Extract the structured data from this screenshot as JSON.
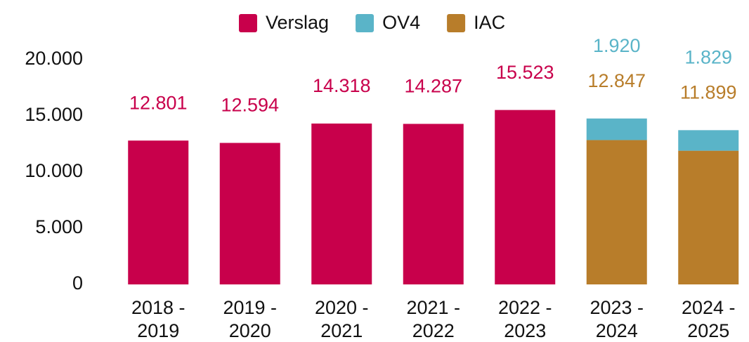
{
  "chart_data": {
    "type": "stacked-bar",
    "categories": [
      [
        "2018 -",
        "2019"
      ],
      [
        "2019 -",
        "2020"
      ],
      [
        "2020 -",
        "2021"
      ],
      [
        "2021 -",
        "2022"
      ],
      [
        "2022 -",
        "2023"
      ],
      [
        "2023 -",
        "2024"
      ],
      [
        "2024 -",
        "2025"
      ]
    ],
    "series": [
      {
        "name": "Verslag",
        "color": "#c8004b",
        "values": [
          12801,
          12594,
          14318,
          14287,
          15523,
          null,
          null
        ],
        "value_labels": [
          "12.801",
          "12.594",
          "14.318",
          "14.287",
          "15.523",
          null,
          null
        ]
      },
      {
        "name": "OV4",
        "color": "#5ab4c8",
        "values": [
          null,
          null,
          null,
          null,
          null,
          1920,
          1829
        ],
        "value_labels": [
          null,
          null,
          null,
          null,
          null,
          "1.920",
          "1.829"
        ]
      },
      {
        "name": "IAC",
        "color": "#b87d2a",
        "values": [
          null,
          null,
          null,
          null,
          null,
          12847,
          11899
        ],
        "value_labels": [
          null,
          null,
          null,
          null,
          null,
          "12.847",
          "11.899"
        ]
      }
    ],
    "ylim": [
      0,
      20000
    ],
    "yticks": [
      0,
      {
        "value": 5000,
        "label": "5.000"
      },
      {
        "value": 10000,
        "label": "10.000"
      },
      {
        "value": 15000,
        "label": "15.000"
      },
      {
        "value": 20000,
        "label": "20.000"
      }
    ],
    "legend": "top"
  }
}
